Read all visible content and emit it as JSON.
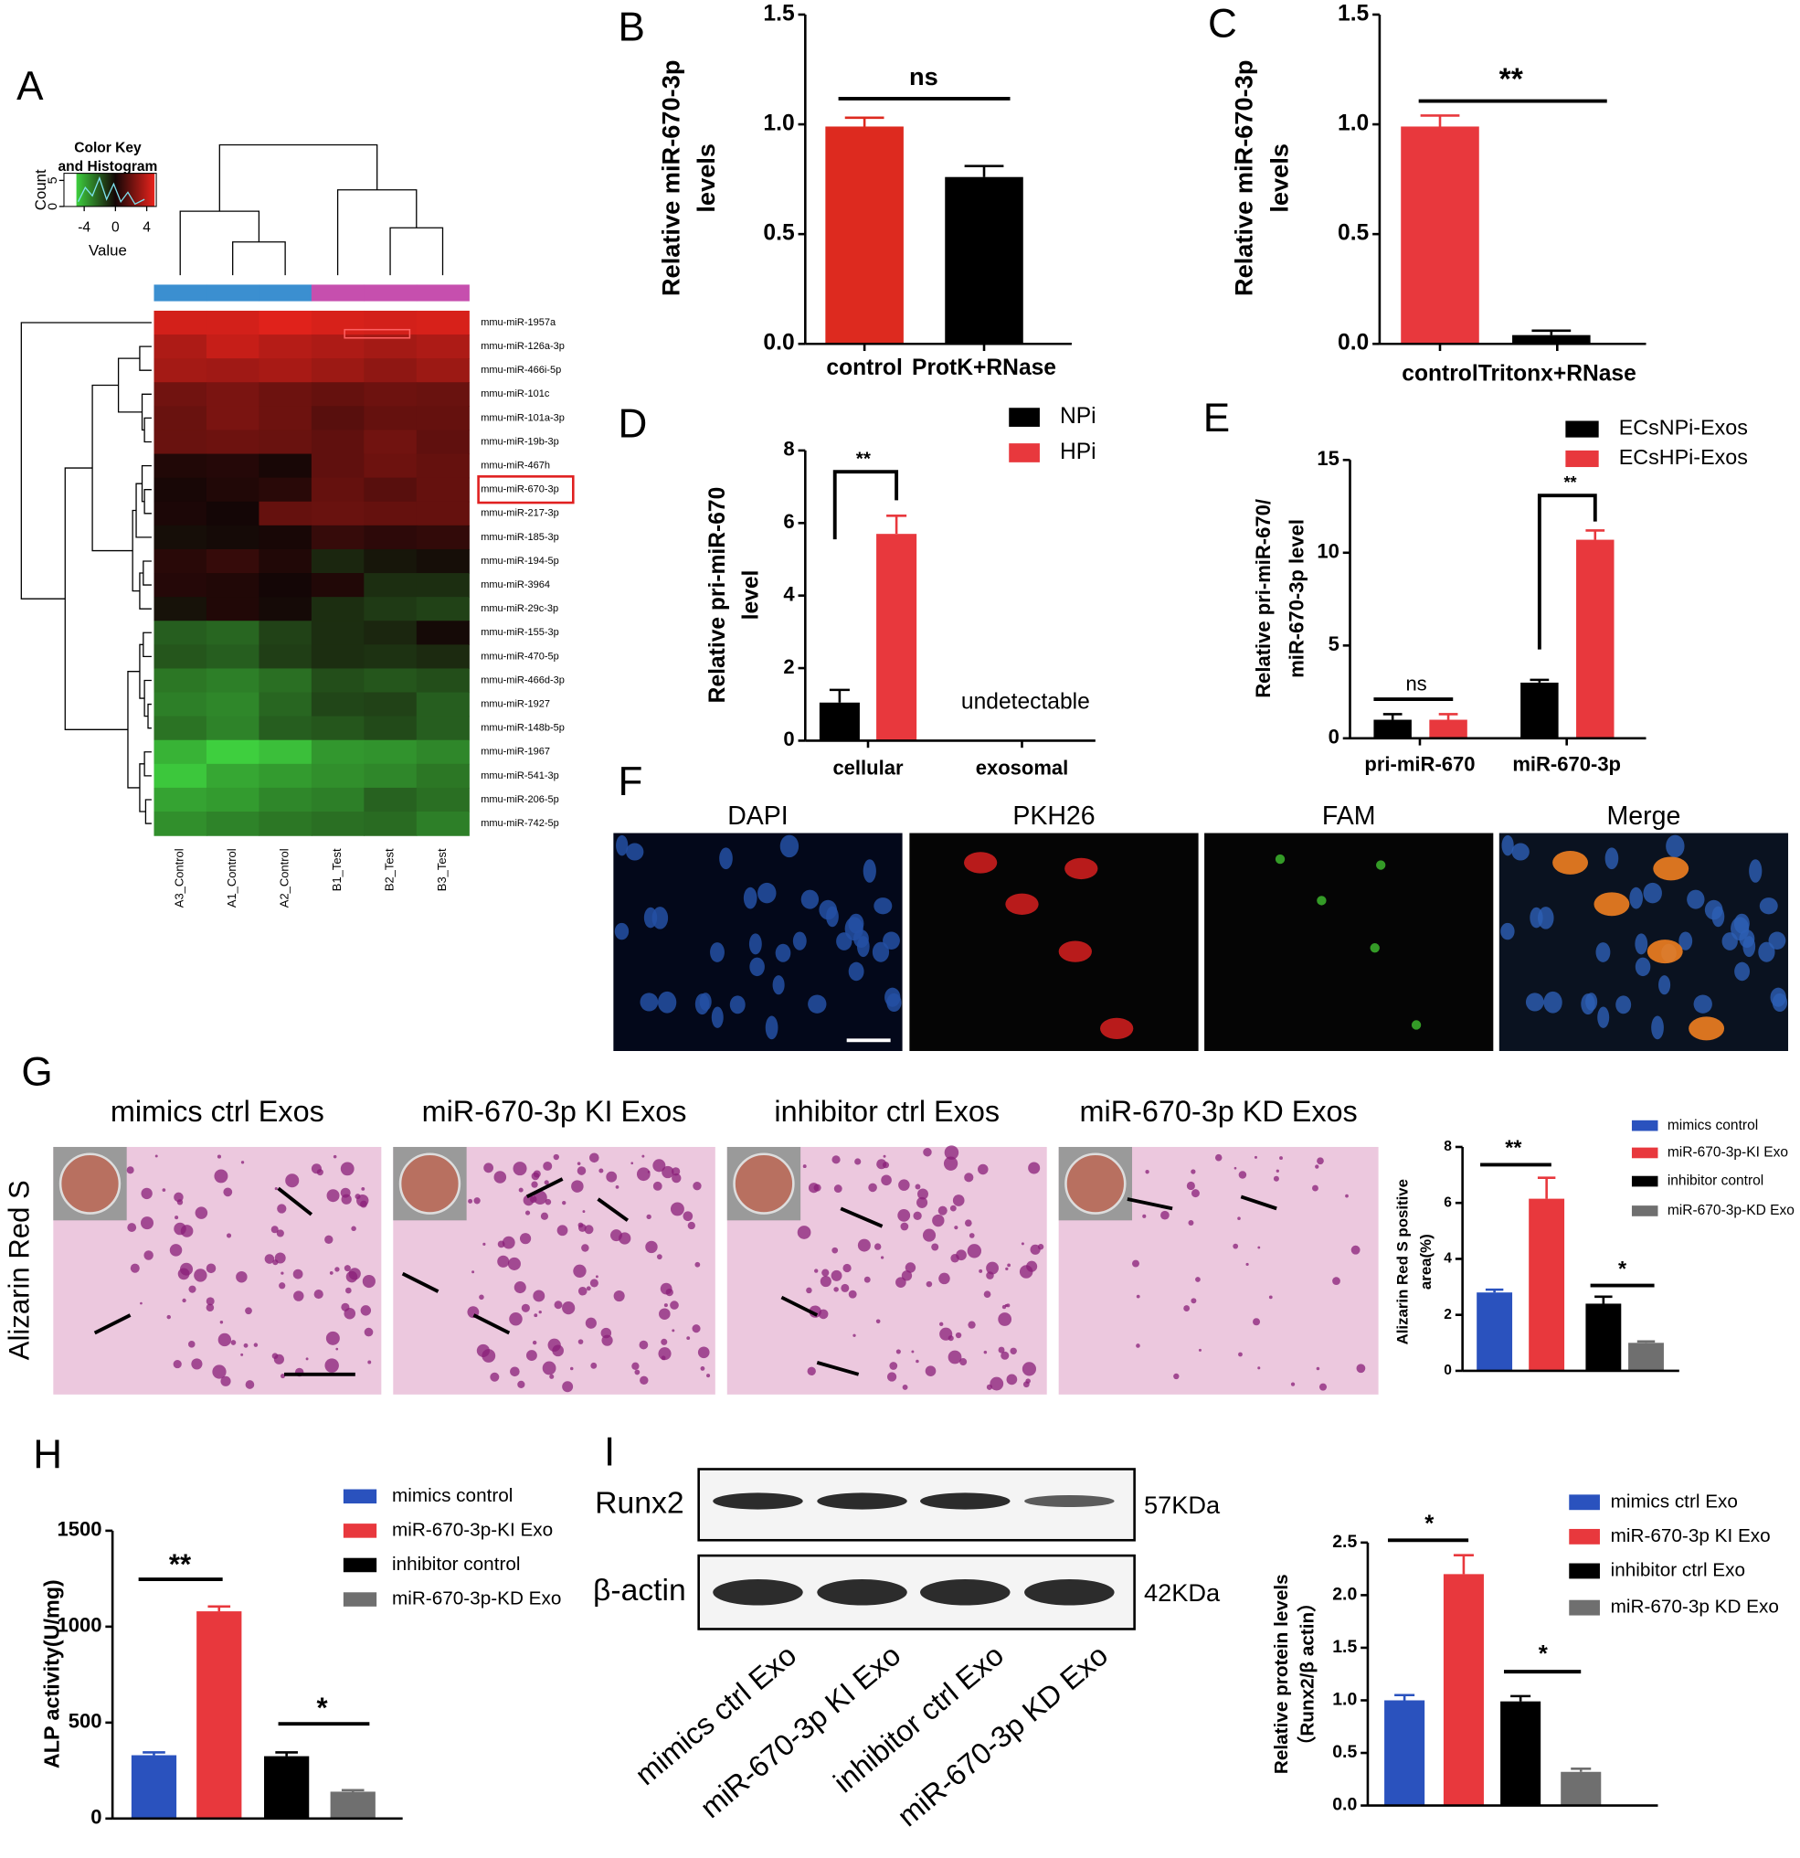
{
  "panel_letters": [
    "A",
    "B",
    "C",
    "D",
    "E",
    "F",
    "G",
    "H",
    "I"
  ],
  "chart_data": [
    {
      "type": "heatmap",
      "title": [
        "Color Key",
        "and Histogram"
      ],
      "colorbar_label": "Value",
      "count_label": "Count",
      "clim": [
        -5,
        5
      ],
      "colorbar_ticks": [
        -4,
        0,
        4
      ],
      "count_ticks": [
        0,
        5
      ],
      "low_color": "#3ecf3e",
      "mid_color": "#140606",
      "high_color": "#e8231c",
      "columns": [
        "A3_Control",
        "A1_Control",
        "A2_Control",
        "B1_Test",
        "B2_Test",
        "B3_Test"
      ],
      "column_group_colors": [
        "#3b8fd0",
        "#3b8fd0",
        "#3b8fd0",
        "#c64fae",
        "#c64fae",
        "#c64fae"
      ],
      "rows": [
        "mmu-miR-1957a",
        "mmu-miR-126a-3p",
        "mmu-miR-466i-5p",
        "mmu-miR-101c",
        "mmu-miR-101a-3p",
        "mmu-miR-19b-3p",
        "mmu-miR-467h",
        "mmu-miR-670-3p",
        "mmu-miR-217-3p",
        "mmu-miR-185-3p",
        "mmu-miR-194-5p",
        "mmu-miR-3964",
        "mmu-miR-29c-3p",
        "mmu-miR-155-3p",
        "mmu-miR-470-5p",
        "mmu-miR-466d-3p",
        "mmu-miR-1927",
        "mmu-miR-148b-5p",
        "mmu-miR-1967",
        "mmu-miR-541-3p",
        "mmu-miR-206-5p",
        "mmu-miR-742-5p"
      ],
      "values": [
        [
          4.5,
          4.5,
          4.8,
          4.6,
          4.5,
          4.6
        ],
        [
          3.6,
          4.2,
          3.8,
          3.6,
          3.4,
          3.6
        ],
        [
          3.4,
          3.3,
          3.5,
          3.2,
          2.9,
          3.2
        ],
        [
          2.2,
          2.4,
          2.1,
          1.9,
          2.1,
          2.0
        ],
        [
          2.0,
          2.4,
          2.1,
          1.6,
          1.9,
          1.9
        ],
        [
          2.0,
          2.1,
          2.0,
          1.8,
          2.2,
          1.8
        ],
        [
          0.3,
          0.4,
          0.1,
          1.8,
          2.1,
          1.9
        ],
        [
          0.1,
          0.3,
          0.5,
          1.9,
          1.6,
          1.9
        ],
        [
          0.2,
          0.0,
          1.9,
          2.0,
          1.9,
          1.9
        ],
        [
          -0.2,
          -0.1,
          0.1,
          0.8,
          0.6,
          0.7
        ],
        [
          0.5,
          0.8,
          0.3,
          -0.8,
          -0.4,
          -0.2
        ],
        [
          0.4,
          0.3,
          0.0,
          0.3,
          -1.0,
          -1.0
        ],
        [
          -0.3,
          0.3,
          -0.1,
          -1.0,
          -1.3,
          -1.5
        ],
        [
          -2.2,
          -2.4,
          -1.5,
          -1.0,
          -0.8,
          -0.1
        ],
        [
          -2.0,
          -2.2,
          -1.4,
          -1.0,
          -1.1,
          -0.9
        ],
        [
          -2.8,
          -3.0,
          -2.6,
          -1.8,
          -2.0,
          -1.8
        ],
        [
          -3.0,
          -3.2,
          -2.4,
          -1.6,
          -1.5,
          -2.2
        ],
        [
          -2.7,
          -3.1,
          -2.2,
          -2.0,
          -1.7,
          -2.2
        ],
        [
          -4.3,
          -5.0,
          -4.6,
          -3.6,
          -3.5,
          -3.2
        ],
        [
          -4.8,
          -4.0,
          -3.7,
          -3.4,
          -3.2,
          -2.8
        ],
        [
          -3.9,
          -3.7,
          -3.2,
          -3.0,
          -2.3,
          -2.6
        ],
        [
          -3.4,
          -3.1,
          -2.8,
          -2.6,
          -2.5,
          -3.0
        ]
      ]
    },
    {
      "type": "bar",
      "ylabel": [
        "Relative miR-670-3p",
        "levels"
      ],
      "categories": [
        "control",
        "ProtK+RNase"
      ],
      "series": [
        {
          "values": [
            0.99,
            0.76
          ],
          "errors": [
            0.04,
            0.05
          ],
          "colors": [
            "#dd2a1f",
            "#000000"
          ]
        }
      ],
      "ylim": [
        0,
        1.5
      ],
      "yticks": [
        {
          "value": 0,
          "label": "0.0"
        },
        {
          "value": 0.5,
          "label": "0.5"
        },
        {
          "value": 1,
          "label": "1.0"
        },
        {
          "value": 1.5,
          "label": "1.5"
        }
      ],
      "annotations": [
        "ns"
      ]
    },
    {
      "type": "bar",
      "ylabel": [
        "Relative miR-670-3p",
        "levels"
      ],
      "categories": [
        "control",
        "Tritonx+RNase"
      ],
      "series": [
        {
          "values": [
            0.99,
            0.04
          ],
          "errors": [
            0.05,
            0.02
          ],
          "colors": [
            "#e8383d",
            "#000000"
          ]
        }
      ],
      "ylim": [
        0,
        1.5
      ],
      "yticks": [
        {
          "value": 0,
          "label": "0.0"
        },
        {
          "value": 0.5,
          "label": "0.5"
        },
        {
          "value": 1,
          "label": "1.0"
        },
        {
          "value": 1.5,
          "label": "1.5"
        }
      ],
      "annotations": [
        "**"
      ]
    },
    {
      "type": "bar",
      "ylabel": [
        "Relative pri-miR-670",
        "level"
      ],
      "categories": [
        "cellular",
        "exosomal"
      ],
      "series": [
        {
          "name": "NPi",
          "color": "#000000",
          "values": [
            1.05,
            null
          ],
          "errors": [
            0.35,
            null
          ]
        },
        {
          "name": "HPi",
          "color": "#e8383d",
          "values": [
            5.7,
            null
          ],
          "errors": [
            0.5,
            null
          ]
        }
      ],
      "ylim": [
        0,
        8
      ],
      "yticks": [
        0,
        2,
        4,
        6,
        8
      ],
      "annotations": [
        "**",
        "undetectable"
      ]
    },
    {
      "type": "bar",
      "ylabel": [
        "Relative pri-miR-670/",
        "miR-670-3p level"
      ],
      "categories": [
        "pri-miR-670",
        "miR-670-3p"
      ],
      "series": [
        {
          "name": "ECsNPi-Exos",
          "color": "#000000",
          "values": [
            1.0,
            3.0
          ],
          "errors": [
            0.3,
            0.15
          ]
        },
        {
          "name": "ECsHPi-Exos",
          "color": "#e8383d",
          "values": [
            1.0,
            10.7
          ],
          "errors": [
            0.3,
            0.5
          ]
        }
      ],
      "ylim": [
        0,
        15
      ],
      "yticks": [
        0,
        5,
        10,
        15
      ],
      "annotations": [
        "ns",
        "**"
      ]
    },
    {
      "type": "bar",
      "ylabel": [
        "Alizarin Red S positive",
        "area(%)"
      ],
      "categories": [
        null
      ],
      "series": [
        {
          "name": "mimics control",
          "color": "#2a52be",
          "values": [
            2.8
          ],
          "errors": [
            0.1
          ]
        },
        {
          "name": "miR-670-3p-KI Exo",
          "color": "#e8383d",
          "values": [
            6.15
          ],
          "errors": [
            0.75
          ]
        },
        {
          "name": "inhibitor control",
          "color": "#000000",
          "values": [
            2.4
          ],
          "errors": [
            0.25
          ]
        },
        {
          "name": "miR-670-3p-KD Exo",
          "color": "#6f6f6f",
          "values": [
            1.0
          ],
          "errors": [
            0.05
          ]
        }
      ],
      "ylim": [
        0,
        8
      ],
      "yticks": [
        0,
        2,
        4,
        6,
        8
      ],
      "annotations": [
        "**",
        "*"
      ]
    },
    {
      "type": "bar",
      "ylabel": [
        "ALP activity(U/mg)"
      ],
      "categories": [
        null
      ],
      "series": [
        {
          "name": "mimics control",
          "color": "#2a52be",
          "values": [
            330
          ],
          "errors": [
            15
          ]
        },
        {
          "name": "miR-670-3p-KI Exo",
          "color": "#e8383d",
          "values": [
            1080
          ],
          "errors": [
            25
          ]
        },
        {
          "name": "inhibitor control",
          "color": "#000000",
          "values": [
            325
          ],
          "errors": [
            20
          ]
        },
        {
          "name": "miR-670-3p-KD Exo",
          "color": "#6f6f6f",
          "values": [
            140
          ],
          "errors": [
            8
          ]
        }
      ],
      "ylim": [
        0,
        1500
      ],
      "yticks": [
        0,
        500,
        1000,
        1500
      ],
      "annotations": [
        "**",
        "*"
      ]
    },
    {
      "type": "bar",
      "ylabel": [
        "Relative  protein levels",
        "（Runx2/β actin）"
      ],
      "categories": [
        null
      ],
      "series": [
        {
          "name": "mimics ctrl Exo",
          "color": "#2a52be",
          "values": [
            1.0
          ],
          "errors": [
            0.05
          ]
        },
        {
          "name": "miR-670-3p KI Exo",
          "color": "#e8383d",
          "values": [
            2.2
          ],
          "errors": [
            0.18
          ]
        },
        {
          "name": "inhibitor ctrl Exo",
          "color": "#000000",
          "values": [
            0.99
          ],
          "errors": [
            0.05
          ]
        },
        {
          "name": "miR-670-3p KD Exo",
          "color": "#6f6f6f",
          "values": [
            0.32
          ],
          "errors": [
            0.03
          ]
        }
      ],
      "ylim": [
        0,
        2.5
      ],
      "yticks": [
        {
          "value": 0,
          "label": "0.0"
        },
        {
          "value": 0.5,
          "label": "0.5"
        },
        {
          "value": 1,
          "label": "1.0"
        },
        {
          "value": 1.5,
          "label": "1.5"
        },
        {
          "value": 2,
          "label": "2.0"
        },
        {
          "value": 2.5,
          "label": "2.5"
        }
      ],
      "annotations": [
        "*",
        "*"
      ]
    }
  ],
  "microscopy": {
    "channels": [
      "DAPI",
      "PKH26",
      "FAM",
      "Merge"
    ]
  },
  "staining": {
    "row_label": "Alizarin Red S",
    "groups": [
      "mimics ctrl Exos",
      "miR-670-3p KI Exos",
      "inhibitor ctrl Exos",
      "miR-670-3p KD Exos"
    ]
  },
  "blot": {
    "bands": [
      "Runx2",
      "β-actin"
    ],
    "sizes": [
      "57KDa",
      "42KDa"
    ],
    "lanes": [
      "mimics ctrl Exo",
      "miR-670-3p KI Exo",
      "inhibitor ctrl Exo",
      "miR-670-3p KD Exo"
    ]
  }
}
